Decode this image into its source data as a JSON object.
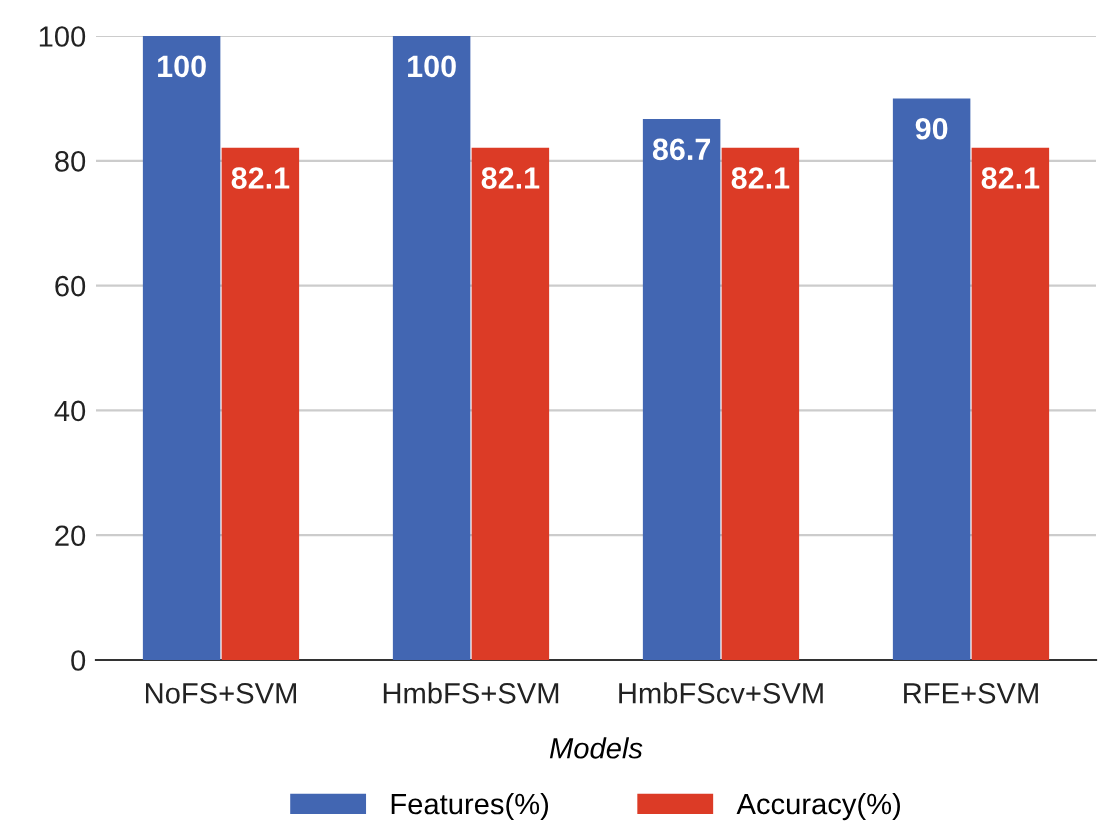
{
  "chart_data": {
    "type": "bar",
    "xlabel": "Models",
    "categories": [
      "NoFS+SVM",
      "HmbFS+SVM",
      "HmbFScv+SVM",
      "RFE+SVM"
    ],
    "series": [
      {
        "name": "Features(%)",
        "color": "#4266b2",
        "values": [
          100,
          100,
          86.7,
          90
        ]
      },
      {
        "name": "Accuracy(%)",
        "color": "#dc3b26",
        "values": [
          82.1,
          82.1,
          82.1,
          82.1
        ]
      }
    ],
    "ylim": [
      0,
      100
    ],
    "yticks": [
      0,
      20,
      40,
      60,
      80,
      100
    ],
    "grid": "y",
    "legend": "bottom",
    "data_labels": true
  }
}
